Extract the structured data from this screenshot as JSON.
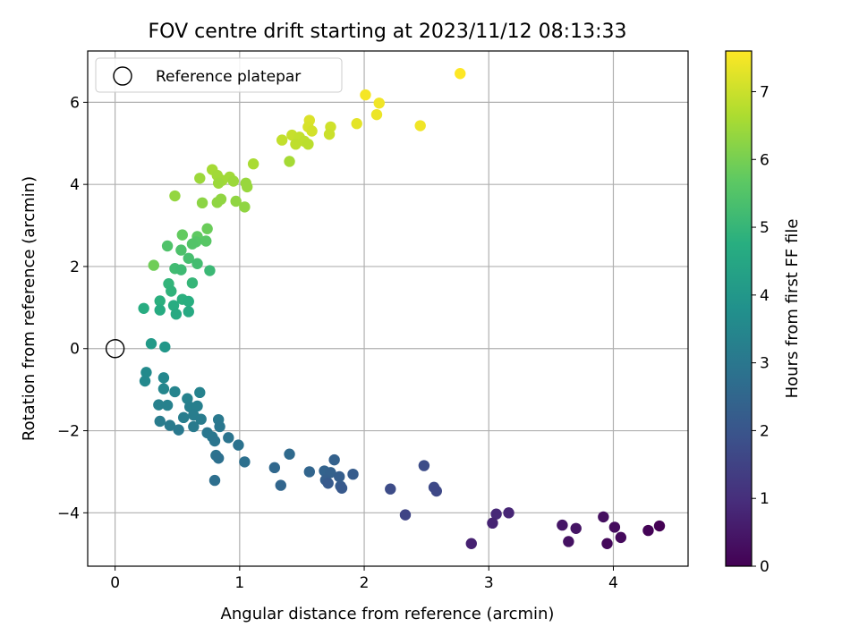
{
  "chart_data": {
    "type": "scatter",
    "title": "FOV centre drift starting at 2023/11/12 08:13:33",
    "xlabel": "Angular distance from reference (arcmin)",
    "ylabel": "Rotation from reference (arcmin)",
    "xlim": [
      -0.22,
      4.6
    ],
    "ylim": [
      -5.3,
      7.25
    ],
    "xticks": [
      0,
      1,
      2,
      3,
      4
    ],
    "yticks": [
      -4,
      -2,
      0,
      2,
      4,
      6
    ],
    "grid": true,
    "legend": {
      "position": "top-left",
      "entries": [
        "Reference platepar"
      ]
    },
    "reference_point": {
      "x": 0,
      "y": 0
    },
    "colorbar": {
      "label": "Hours from first FF file",
      "min": 0,
      "max": 7.6,
      "ticks": [
        0,
        1,
        2,
        3,
        4,
        5,
        6,
        7
      ],
      "colormap": "viridis"
    },
    "points": [
      {
        "x": 2.77,
        "y": 6.7,
        "c": 7.6
      },
      {
        "x": 2.01,
        "y": 6.18,
        "c": 7.5
      },
      {
        "x": 2.12,
        "y": 5.98,
        "c": 7.45
      },
      {
        "x": 2.1,
        "y": 5.7,
        "c": 7.4
      },
      {
        "x": 2.45,
        "y": 5.43,
        "c": 7.45
      },
      {
        "x": 1.94,
        "y": 5.48,
        "c": 7.3
      },
      {
        "x": 1.56,
        "y": 5.56,
        "c": 7.2
      },
      {
        "x": 1.55,
        "y": 5.4,
        "c": 7.15
      },
      {
        "x": 1.58,
        "y": 5.3,
        "c": 7.1
      },
      {
        "x": 1.73,
        "y": 5.4,
        "c": 7.05
      },
      {
        "x": 1.72,
        "y": 5.22,
        "c": 7.0
      },
      {
        "x": 1.42,
        "y": 5.2,
        "c": 6.95
      },
      {
        "x": 1.34,
        "y": 5.08,
        "c": 6.9
      },
      {
        "x": 1.48,
        "y": 5.15,
        "c": 6.9
      },
      {
        "x": 1.52,
        "y": 5.05,
        "c": 6.85
      },
      {
        "x": 1.45,
        "y": 4.98,
        "c": 6.85
      },
      {
        "x": 1.55,
        "y": 4.98,
        "c": 6.8
      },
      {
        "x": 1.4,
        "y": 4.56,
        "c": 6.55
      },
      {
        "x": 1.11,
        "y": 4.5,
        "c": 6.6
      },
      {
        "x": 0.78,
        "y": 4.36,
        "c": 6.55
      },
      {
        "x": 0.82,
        "y": 4.22,
        "c": 6.5
      },
      {
        "x": 0.92,
        "y": 4.18,
        "c": 6.5
      },
      {
        "x": 0.86,
        "y": 4.1,
        "c": 6.5
      },
      {
        "x": 0.68,
        "y": 4.15,
        "c": 6.45
      },
      {
        "x": 0.83,
        "y": 4.03,
        "c": 6.45
      },
      {
        "x": 0.95,
        "y": 4.08,
        "c": 6.45
      },
      {
        "x": 1.05,
        "y": 4.03,
        "c": 6.4
      },
      {
        "x": 1.06,
        "y": 3.94,
        "c": 6.4
      },
      {
        "x": 0.48,
        "y": 3.72,
        "c": 6.35
      },
      {
        "x": 0.85,
        "y": 3.64,
        "c": 6.3
      },
      {
        "x": 0.82,
        "y": 3.56,
        "c": 6.3
      },
      {
        "x": 0.7,
        "y": 3.55,
        "c": 6.25
      },
      {
        "x": 0.97,
        "y": 3.59,
        "c": 6.3
      },
      {
        "x": 1.04,
        "y": 3.45,
        "c": 6.3
      },
      {
        "x": 0.74,
        "y": 2.92,
        "c": 5.85
      },
      {
        "x": 0.54,
        "y": 2.77,
        "c": 5.75
      },
      {
        "x": 0.66,
        "y": 2.73,
        "c": 5.7
      },
      {
        "x": 0.73,
        "y": 2.62,
        "c": 5.6
      },
      {
        "x": 0.65,
        "y": 2.6,
        "c": 5.55
      },
      {
        "x": 0.62,
        "y": 2.55,
        "c": 5.5
      },
      {
        "x": 0.42,
        "y": 2.5,
        "c": 5.45
      },
      {
        "x": 0.53,
        "y": 2.4,
        "c": 5.4
      },
      {
        "x": 0.59,
        "y": 2.2,
        "c": 5.3
      },
      {
        "x": 0.66,
        "y": 2.07,
        "c": 5.25
      },
      {
        "x": 0.31,
        "y": 2.03,
        "c": 5.9
      },
      {
        "x": 0.48,
        "y": 1.95,
        "c": 5.2
      },
      {
        "x": 0.53,
        "y": 1.92,
        "c": 5.15
      },
      {
        "x": 0.76,
        "y": 1.9,
        "c": 5.1
      },
      {
        "x": 0.62,
        "y": 1.6,
        "c": 5.0
      },
      {
        "x": 0.43,
        "y": 1.58,
        "c": 4.95
      },
      {
        "x": 0.45,
        "y": 1.4,
        "c": 4.9
      },
      {
        "x": 0.54,
        "y": 1.2,
        "c": 4.8
      },
      {
        "x": 0.36,
        "y": 1.16,
        "c": 4.8
      },
      {
        "x": 0.59,
        "y": 1.15,
        "c": 4.75
      },
      {
        "x": 0.47,
        "y": 1.05,
        "c": 4.7
      },
      {
        "x": 0.23,
        "y": 0.98,
        "c": 4.7
      },
      {
        "x": 0.36,
        "y": 0.94,
        "c": 4.65
      },
      {
        "x": 0.49,
        "y": 0.84,
        "c": 4.6
      },
      {
        "x": 0.59,
        "y": 0.9,
        "c": 4.6
      },
      {
        "x": 0.29,
        "y": 0.12,
        "c": 4.1
      },
      {
        "x": 0.4,
        "y": 0.04,
        "c": 4.0
      },
      {
        "x": 0.25,
        "y": -0.58,
        "c": 3.6
      },
      {
        "x": 0.24,
        "y": -0.79,
        "c": 3.55
      },
      {
        "x": 0.39,
        "y": -0.71,
        "c": 3.5
      },
      {
        "x": 0.39,
        "y": -0.98,
        "c": 3.45
      },
      {
        "x": 0.48,
        "y": -1.05,
        "c": 3.4
      },
      {
        "x": 0.68,
        "y": -1.07,
        "c": 3.35
      },
      {
        "x": 0.58,
        "y": -1.22,
        "c": 3.35
      },
      {
        "x": 0.35,
        "y": -1.37,
        "c": 3.3
      },
      {
        "x": 0.42,
        "y": -1.38,
        "c": 3.3
      },
      {
        "x": 0.6,
        "y": -1.42,
        "c": 3.25
      },
      {
        "x": 0.66,
        "y": -1.4,
        "c": 3.25
      },
      {
        "x": 0.55,
        "y": -1.68,
        "c": 3.2
      },
      {
        "x": 0.63,
        "y": -1.62,
        "c": 3.2
      },
      {
        "x": 0.69,
        "y": -1.72,
        "c": 3.15
      },
      {
        "x": 0.36,
        "y": -1.77,
        "c": 3.15
      },
      {
        "x": 0.44,
        "y": -1.87,
        "c": 3.1
      },
      {
        "x": 0.63,
        "y": -1.9,
        "c": 3.1
      },
      {
        "x": 0.51,
        "y": -1.98,
        "c": 3.05
      },
      {
        "x": 0.74,
        "y": -2.05,
        "c": 3.0
      },
      {
        "x": 0.78,
        "y": -2.15,
        "c": 3.0
      },
      {
        "x": 0.8,
        "y": -2.25,
        "c": 2.95
      },
      {
        "x": 0.83,
        "y": -1.73,
        "c": 3.05
      },
      {
        "x": 0.84,
        "y": -1.9,
        "c": 3.0
      },
      {
        "x": 0.91,
        "y": -2.17,
        "c": 2.9
      },
      {
        "x": 0.99,
        "y": -2.35,
        "c": 2.85
      },
      {
        "x": 0.81,
        "y": -2.6,
        "c": 2.85
      },
      {
        "x": 0.83,
        "y": -2.67,
        "c": 2.8
      },
      {
        "x": 1.04,
        "y": -2.76,
        "c": 2.8
      },
      {
        "x": 0.8,
        "y": -3.21,
        "c": 2.75
      },
      {
        "x": 1.4,
        "y": -2.57,
        "c": 2.6
      },
      {
        "x": 1.28,
        "y": -2.9,
        "c": 2.55
      },
      {
        "x": 1.33,
        "y": -3.33,
        "c": 2.5
      },
      {
        "x": 1.56,
        "y": -3.0,
        "c": 2.45
      },
      {
        "x": 1.68,
        "y": -2.98,
        "c": 2.4
      },
      {
        "x": 1.73,
        "y": -3.02,
        "c": 2.35
      },
      {
        "x": 1.69,
        "y": -3.2,
        "c": 2.3
      },
      {
        "x": 1.76,
        "y": -2.71,
        "c": 2.35
      },
      {
        "x": 1.8,
        "y": -3.12,
        "c": 2.25
      },
      {
        "x": 1.81,
        "y": -3.35,
        "c": 2.2
      },
      {
        "x": 1.91,
        "y": -3.06,
        "c": 2.2
      },
      {
        "x": 1.71,
        "y": -3.28,
        "c": 2.15
      },
      {
        "x": 1.82,
        "y": -3.4,
        "c": 2.1
      },
      {
        "x": 2.48,
        "y": -2.85,
        "c": 1.75
      },
      {
        "x": 2.21,
        "y": -3.42,
        "c": 1.75
      },
      {
        "x": 2.56,
        "y": -3.38,
        "c": 1.7
      },
      {
        "x": 2.58,
        "y": -3.47,
        "c": 1.65
      },
      {
        "x": 2.33,
        "y": -4.05,
        "c": 1.55
      },
      {
        "x": 3.06,
        "y": -4.03,
        "c": 0.85
      },
      {
        "x": 3.16,
        "y": -4.0,
        "c": 0.8
      },
      {
        "x": 3.03,
        "y": -4.25,
        "c": 0.75
      },
      {
        "x": 2.86,
        "y": -4.75,
        "c": 0.7
      },
      {
        "x": 3.59,
        "y": -4.3,
        "c": 0.45
      },
      {
        "x": 3.7,
        "y": -4.38,
        "c": 0.4
      },
      {
        "x": 3.64,
        "y": -4.7,
        "c": 0.35
      },
      {
        "x": 3.92,
        "y": -4.1,
        "c": 0.3
      },
      {
        "x": 4.01,
        "y": -4.35,
        "c": 0.25
      },
      {
        "x": 4.06,
        "y": -4.6,
        "c": 0.2
      },
      {
        "x": 3.95,
        "y": -4.75,
        "c": 0.15
      },
      {
        "x": 4.28,
        "y": -4.43,
        "c": 0.05
      },
      {
        "x": 4.37,
        "y": -4.32,
        "c": 0.0
      }
    ]
  }
}
